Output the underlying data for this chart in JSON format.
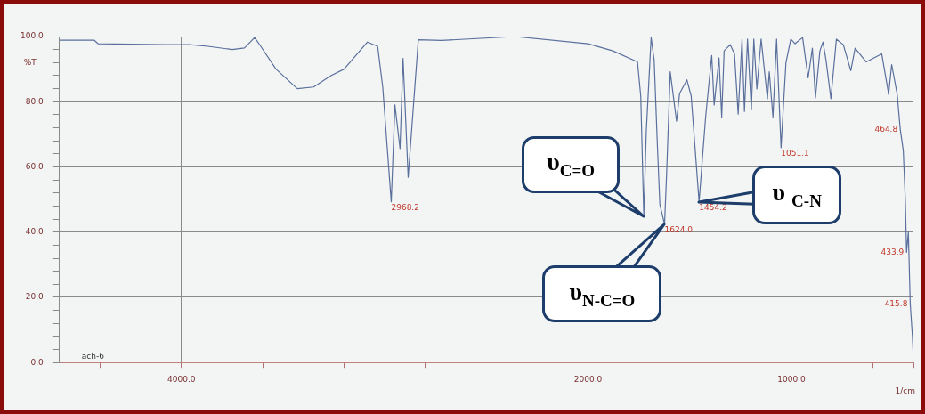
{
  "chart_data": {
    "type": "line",
    "xlabel": "1/cm",
    "ylabel": "%T",
    "x": [
      4600,
      4430,
      4410,
      4080,
      4000,
      3960,
      3870,
      3750,
      3690,
      3640,
      3610,
      3535,
      3430,
      3350,
      3265,
      3200,
      3085,
      3035,
      3010,
      2968.2,
      2950,
      2925,
      2910,
      2885,
      2835,
      2720,
      2360,
      2000,
      1878,
      1757,
      1741,
      1726,
      1714,
      1690,
      1675,
      1660,
      1647,
      1624,
      1614,
      1596,
      1565,
      1550,
      1514,
      1493,
      1454.2,
      1422,
      1392,
      1380,
      1356,
      1343,
      1331,
      1301,
      1280,
      1262,
      1243,
      1231,
      1216,
      1197,
      1185,
      1170,
      1149,
      1118,
      1109,
      1091,
      1073,
      1051.1,
      1027,
      1003,
      982,
      945,
      918,
      897,
      882,
      860,
      845,
      830,
      806,
      779,
      745,
      708,
      687,
      632,
      556,
      522,
      507,
      480,
      464.8,
      450,
      440,
      433.9,
      425,
      415.8,
      405,
      400
    ],
    "series": [
      {
        "color": "#5a6f9c",
        "values": [
          98.9,
          98.9,
          97.8,
          97.5,
          97.5,
          97.5,
          97,
          96,
          96.5,
          99.7,
          97,
          90,
          84,
          84.5,
          88,
          90,
          98.3,
          97,
          84.5,
          49.3,
          79,
          65.6,
          93.3,
          56.8,
          99,
          98.8,
          100,
          97.8,
          95.6,
          92.2,
          81.7,
          44.9,
          70.6,
          99.7,
          92.8,
          67.9,
          48.5,
          42.4,
          57.6,
          89.2,
          74,
          82.5,
          86.7,
          81.7,
          49.3,
          75.3,
          94.2,
          79,
          93.4,
          75.3,
          95.6,
          97.5,
          94.7,
          76.2,
          99.2,
          77,
          99.2,
          77.6,
          99.2,
          83.9,
          99.2,
          80.9,
          89.2,
          75.3,
          99.2,
          65.9,
          92,
          99.2,
          97.8,
          99.7,
          87.3,
          96.4,
          81.2,
          95.6,
          98.3,
          92.8,
          80.9,
          99.2,
          97.5,
          89.5,
          96.4,
          92.2,
          94.7,
          82.3,
          91.4,
          82.3,
          71.5,
          65,
          50,
          33.8,
          40,
          18,
          8,
          1
        ]
      }
    ],
    "xlim": [
      4600,
      400
    ],
    "xticks": [
      {
        "value": 4400,
        "label": null
      },
      {
        "value": 4000,
        "label": "4000.0"
      },
      {
        "value": 3600,
        "label": null
      },
      {
        "value": 3200,
        "label": null
      },
      {
        "value": 2800,
        "label": null
      },
      {
        "value": 2400,
        "label": null
      },
      {
        "value": 2000,
        "label": "2000.0"
      },
      {
        "value": 1800,
        "label": null
      },
      {
        "value": 1600,
        "label": null
      },
      {
        "value": 1400,
        "label": null
      },
      {
        "value": 1200,
        "label": null
      },
      {
        "value": 1000,
        "label": "1000.0"
      },
      {
        "value": 800,
        "label": null
      },
      {
        "value": 600,
        "label": null
      },
      {
        "value": 400,
        "label": null
      }
    ],
    "ylim": [
      0,
      100
    ],
    "yticks": [
      {
        "value": 0,
        "label": "0.0"
      },
      {
        "value": 4,
        "label": null
      },
      {
        "value": 8,
        "label": null
      },
      {
        "value": 12,
        "label": null
      },
      {
        "value": 16,
        "label": null
      },
      {
        "value": 20,
        "label": "20.0"
      },
      {
        "value": 24,
        "label": null
      },
      {
        "value": 28,
        "label": null
      },
      {
        "value": 32,
        "label": null
      },
      {
        "value": 36,
        "label": null
      },
      {
        "value": 40,
        "label": "40.0"
      },
      {
        "value": 44,
        "label": null
      },
      {
        "value": 48,
        "label": null
      },
      {
        "value": 52,
        "label": null
      },
      {
        "value": 56,
        "label": null
      },
      {
        "value": 60,
        "label": "60.0"
      },
      {
        "value": 64,
        "label": null
      },
      {
        "value": 68,
        "label": null
      },
      {
        "value": 72,
        "label": null
      },
      {
        "value": 76,
        "label": null
      },
      {
        "value": 80,
        "label": "80.0"
      },
      {
        "value": 84,
        "label": null
      },
      {
        "value": 88,
        "label": null
      },
      {
        "value": 92,
        "label": null
      },
      {
        "value": 96,
        "label": null
      },
      {
        "value": 100,
        "label": "100.0"
      }
    ],
    "grid": true,
    "marker": "none",
    "line_style": "solid",
    "annotations": [
      {
        "text": "υ$_{C=O}$",
        "x": 1726,
        "y": 44.9
      },
      {
        "text": "υ$_{N-C=O}$",
        "x": 1624,
        "y": 42.4
      },
      {
        "text": "υ $_{C-N}$",
        "x": 1454.2,
        "y": 49.3
      },
      {
        "text": "2968.2",
        "x": 2968.2,
        "y": 49.3
      },
      {
        "text": "1624.0",
        "x": 1624,
        "y": 42.4
      },
      {
        "text": "1454.2",
        "x": 1454.2,
        "y": 49.3
      },
      {
        "text": "1051.1",
        "x": 1051.1,
        "y": 65.9
      },
      {
        "text": "464.8",
        "x": 464.8,
        "y": 71.5
      },
      {
        "text": "433.9",
        "x": 433.9,
        "y": 33.8
      },
      {
        "text": "415.8",
        "x": 415.8,
        "y": 18
      },
      "ach-6"
    ]
  }
}
